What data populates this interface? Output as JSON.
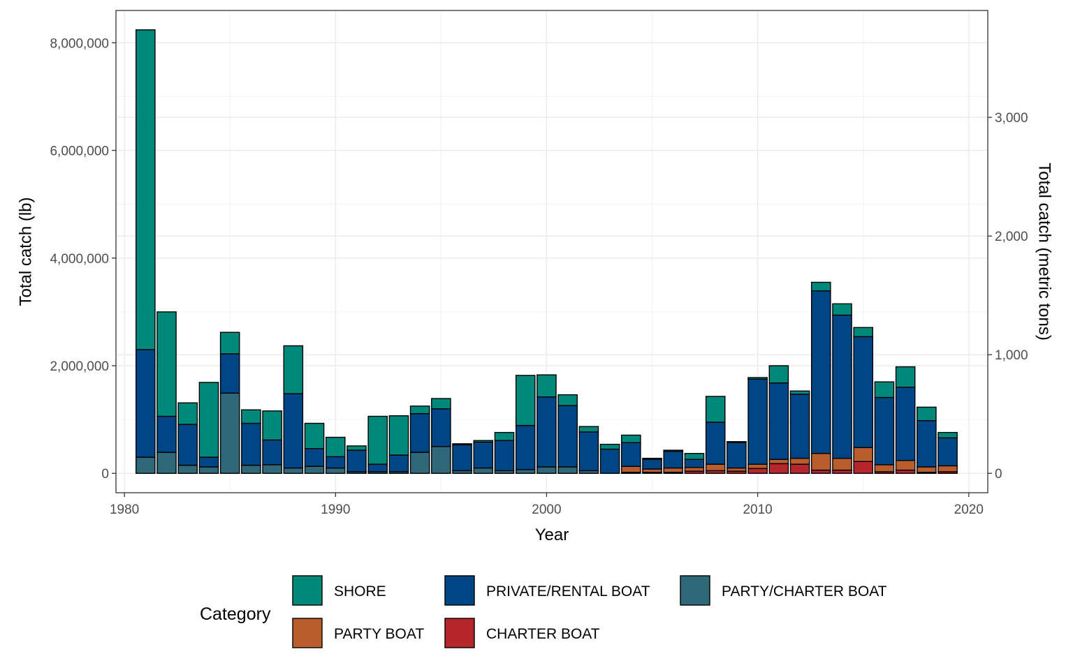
{
  "chart_data": {
    "type": "bar",
    "stacked": true,
    "xlabel": "Year",
    "ylabel": "Total catch (lb)",
    "ylabel_secondary": "Total catch (metric tons)",
    "xlim": [
      1979.6,
      2020.9
    ],
    "ylim": [
      -360000,
      8600000
    ],
    "x_ticks": [
      1980,
      1990,
      2000,
      2010,
      2020
    ],
    "y_ticks": [
      0,
      2000000,
      4000000,
      6000000,
      8000000
    ],
    "y_tick_labels": [
      "0",
      "2,000,000",
      "4,000,000",
      "6,000,000",
      "8,000,000"
    ],
    "y2_ticks": [
      0,
      1000,
      2000,
      3000
    ],
    "y2_tick_labels": [
      "0",
      "1,000",
      "2,000",
      "3,000"
    ],
    "grid": true,
    "legend_title": "Category",
    "legend_position": "bottom",
    "legend": [
      {
        "name": "SHORE",
        "color": "#00897b"
      },
      {
        "name": "PRIVATE/RENTAL BOAT",
        "color": "#004585"
      },
      {
        "name": "PARTY/CHARTER BOAT",
        "color": "#2f6878"
      },
      {
        "name": "PARTY BOAT",
        "color": "#b95d2f"
      },
      {
        "name": "CHARTER BOAT",
        "color": "#b5262d"
      }
    ],
    "x": [
      1981,
      1982,
      1983,
      1984,
      1985,
      1986,
      1987,
      1988,
      1989,
      1990,
      1991,
      1992,
      1993,
      1994,
      1995,
      1996,
      1997,
      1998,
      1999,
      2000,
      2001,
      2002,
      2003,
      2004,
      2005,
      2006,
      2007,
      2008,
      2009,
      2010,
      2011,
      2012,
      2013,
      2014,
      2015,
      2016,
      2017,
      2018,
      2019
    ],
    "series": [
      {
        "name": "CHARTER BOAT",
        "color": "#b5262d",
        "values": [
          0,
          0,
          0,
          0,
          0,
          0,
          0,
          0,
          0,
          0,
          0,
          0,
          0,
          0,
          0,
          0,
          0,
          0,
          0,
          0,
          0,
          0,
          0,
          20000,
          20000,
          20000,
          40000,
          50000,
          40000,
          90000,
          180000,
          170000,
          60000,
          60000,
          220000,
          30000,
          60000,
          20000,
          30000
        ]
      },
      {
        "name": "PARTY BOAT",
        "color": "#b95d2f",
        "values": [
          0,
          0,
          0,
          0,
          0,
          0,
          0,
          0,
          0,
          0,
          0,
          0,
          0,
          0,
          0,
          0,
          0,
          0,
          0,
          0,
          0,
          0,
          0,
          110000,
          60000,
          80000,
          70000,
          120000,
          60000,
          80000,
          80000,
          110000,
          310000,
          220000,
          260000,
          130000,
          180000,
          100000,
          110000
        ]
      },
      {
        "name": "PARTY/CHARTER BOAT",
        "color": "#2f6878",
        "values": [
          300000,
          390000,
          150000,
          120000,
          1490000,
          150000,
          160000,
          100000,
          130000,
          100000,
          30000,
          30000,
          30000,
          390000,
          500000,
          50000,
          100000,
          50000,
          70000,
          120000,
          120000,
          50000,
          0,
          0,
          0,
          0,
          0,
          0,
          0,
          0,
          0,
          0,
          0,
          0,
          0,
          0,
          0,
          0,
          0
        ]
      },
      {
        "name": "PRIVATE/RENTAL BOAT",
        "color": "#004585",
        "values": [
          2000000,
          670000,
          760000,
          180000,
          730000,
          780000,
          460000,
          1380000,
          330000,
          210000,
          400000,
          140000,
          310000,
          720000,
          700000,
          480000,
          480000,
          560000,
          820000,
          1300000,
          1140000,
          720000,
          450000,
          440000,
          180000,
          310000,
          150000,
          780000,
          470000,
          1580000,
          1420000,
          1190000,
          3020000,
          2660000,
          2060000,
          1250000,
          1360000,
          860000,
          520000
        ]
      },
      {
        "name": "SHORE",
        "color": "#00897b",
        "values": [
          5940000,
          1940000,
          400000,
          1390000,
          400000,
          250000,
          540000,
          890000,
          470000,
          360000,
          80000,
          890000,
          730000,
          140000,
          190000,
          20000,
          30000,
          150000,
          930000,
          410000,
          200000,
          100000,
          90000,
          140000,
          20000,
          20000,
          110000,
          480000,
          20000,
          30000,
          320000,
          60000,
          160000,
          210000,
          170000,
          290000,
          380000,
          250000,
          100000
        ]
      }
    ]
  }
}
